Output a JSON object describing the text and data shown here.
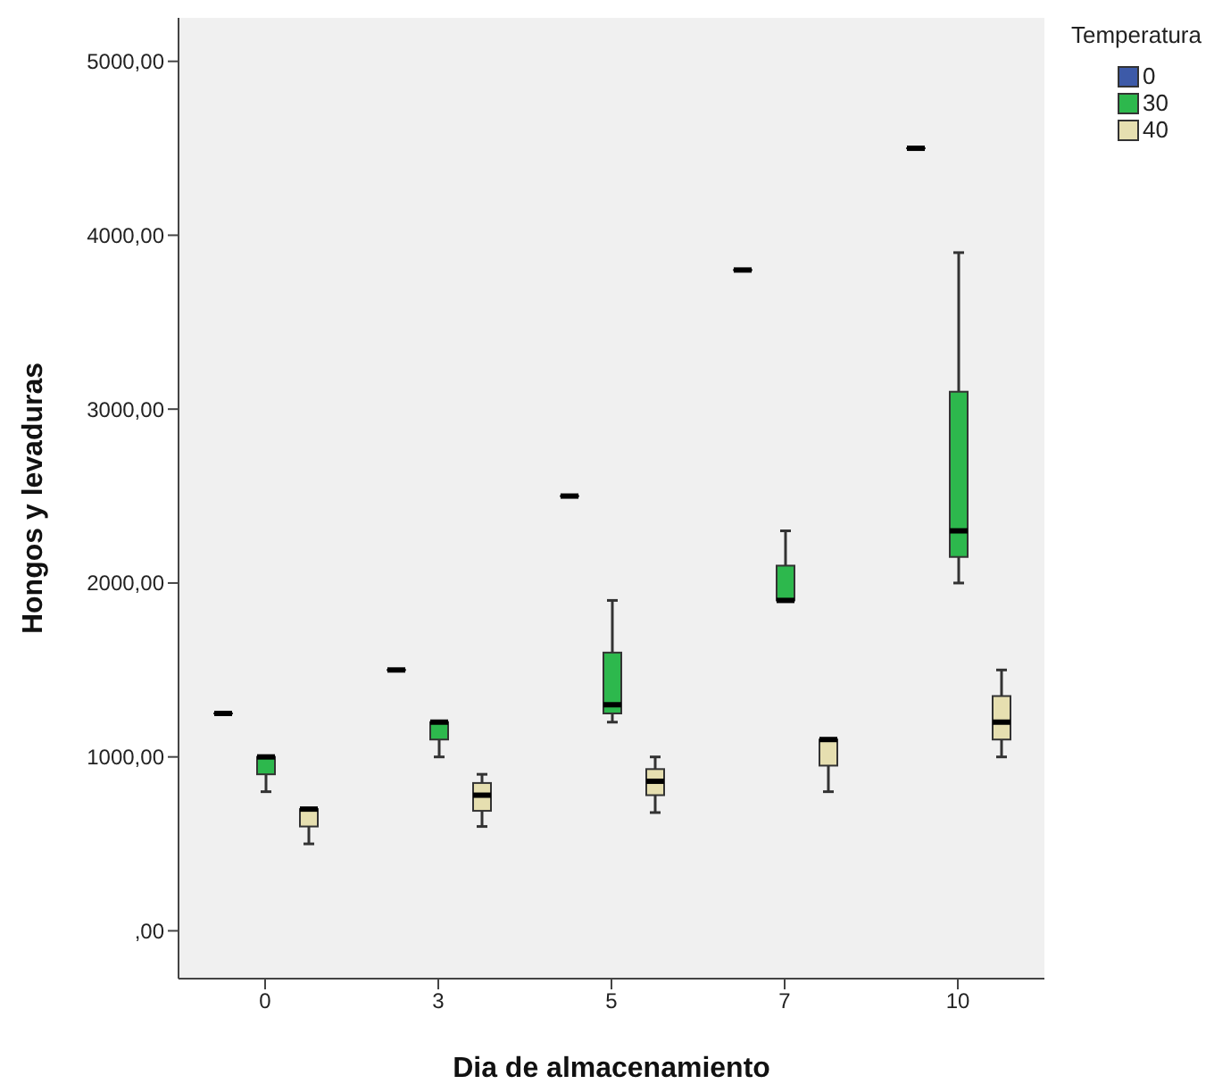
{
  "chart_data": {
    "type": "box",
    "xlabel": "Dia de almacenamiento",
    "ylabel": "Hongos y levaduras",
    "legend_title": "Temperatura",
    "legend": "top right",
    "categories": [
      "0",
      "3",
      "5",
      "7",
      "10"
    ],
    "ylim": [
      -275,
      5250
    ],
    "yticks": [
      {
        "value": 0,
        "label": ",00"
      },
      {
        "value": 1000,
        "label": "1000,00"
      },
      {
        "value": 2000,
        "label": "2000,00"
      },
      {
        "value": 3000,
        "label": "3000,00"
      },
      {
        "value": 4000,
        "label": "4000,00"
      },
      {
        "value": 5000,
        "label": "5000,00"
      }
    ],
    "series": [
      {
        "name": "0",
        "color": "#3d5aa8",
        "boxes": [
          {
            "low": 1250,
            "q1": 1250,
            "median": 1250,
            "q3": 1250,
            "high": 1250
          },
          {
            "low": 1500,
            "q1": 1500,
            "median": 1500,
            "q3": 1500,
            "high": 1500
          },
          {
            "low": 2500,
            "q1": 2500,
            "median": 2500,
            "q3": 2500,
            "high": 2500
          },
          {
            "low": 3800,
            "q1": 3800,
            "median": 3800,
            "q3": 3800,
            "high": 3800
          },
          {
            "low": 4500,
            "q1": 4500,
            "median": 4500,
            "q3": 4500,
            "high": 4500
          }
        ]
      },
      {
        "name": "30",
        "color": "#2db84d",
        "boxes": [
          {
            "low": 800,
            "q1": 900,
            "median": 1000,
            "q3": 1000,
            "high": 1000
          },
          {
            "low": 1000,
            "q1": 1100,
            "median": 1200,
            "q3": 1200,
            "high": 1200
          },
          {
            "low": 1200,
            "q1": 1250,
            "median": 1300,
            "q3": 1600,
            "high": 1900
          },
          {
            "low": 1900,
            "q1": 1900,
            "median": 1900,
            "q3": 2100,
            "high": 2300
          },
          {
            "low": 2000,
            "q1": 2150,
            "median": 2300,
            "q3": 3100,
            "high": 3900
          }
        ]
      },
      {
        "name": "40",
        "color": "#e6dfb0",
        "boxes": [
          {
            "low": 500,
            "q1": 600,
            "median": 700,
            "q3": 700,
            "high": 700
          },
          {
            "low": 600,
            "q1": 690,
            "median": 780,
            "q3": 850,
            "high": 900
          },
          {
            "low": 680,
            "q1": 780,
            "median": 860,
            "q3": 930,
            "high": 1000
          },
          {
            "low": 800,
            "q1": 950,
            "median": 1100,
            "q3": 1100,
            "high": 1100
          },
          {
            "low": 1000,
            "q1": 1100,
            "median": 1200,
            "q3": 1350,
            "high": 1500
          }
        ]
      }
    ]
  }
}
